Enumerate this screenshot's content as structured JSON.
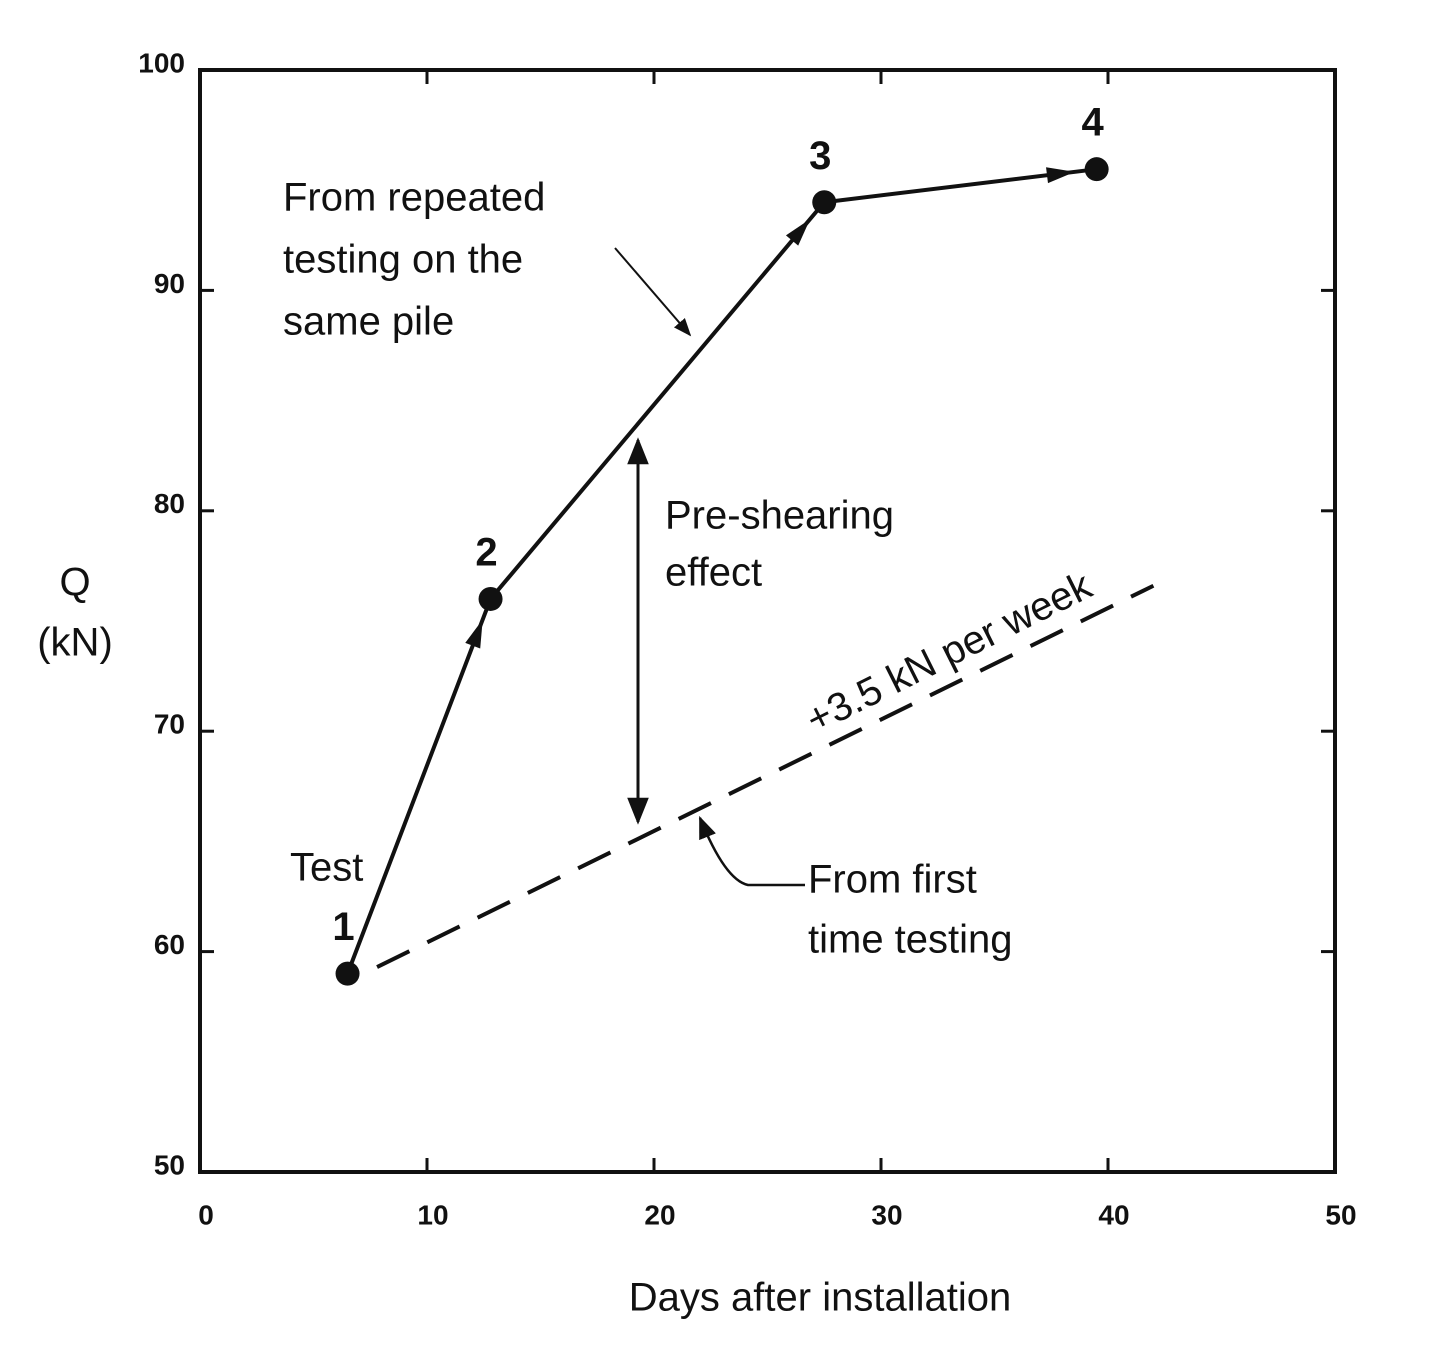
{
  "chart_data": {
    "type": "line",
    "x_label": "Days after installation",
    "y_label": [
      "Q",
      "(kN)"
    ],
    "xlim": [
      0,
      50
    ],
    "xticks": [
      0,
      10,
      20,
      30,
      40,
      50
    ],
    "ylim": [
      50,
      100
    ],
    "yticks": [
      50,
      60,
      70,
      80,
      90,
      100
    ],
    "series": [
      {
        "color": "#111111",
        "style": "solid",
        "markers": true,
        "x": [
          6.5,
          12.8,
          27.5,
          39.5
        ],
        "values": [
          59,
          76,
          94,
          95.5
        ],
        "point_labels": [
          "1",
          "2",
          "3",
          "4"
        ]
      },
      {
        "color": "#111111",
        "style": "dashed",
        "markers": false,
        "x": [
          7.8,
          42
        ],
        "values": [
          59.3,
          76.6
        ]
      }
    ],
    "annotations": {
      "test": "Test",
      "repeated": [
        "From repeated",
        "testing on the",
        "same pile"
      ],
      "preshearing": [
        "Pre-shearing",
        "effect"
      ],
      "rate": "+3.5 kN per week",
      "first": [
        "From first",
        "time testing"
      ]
    }
  }
}
